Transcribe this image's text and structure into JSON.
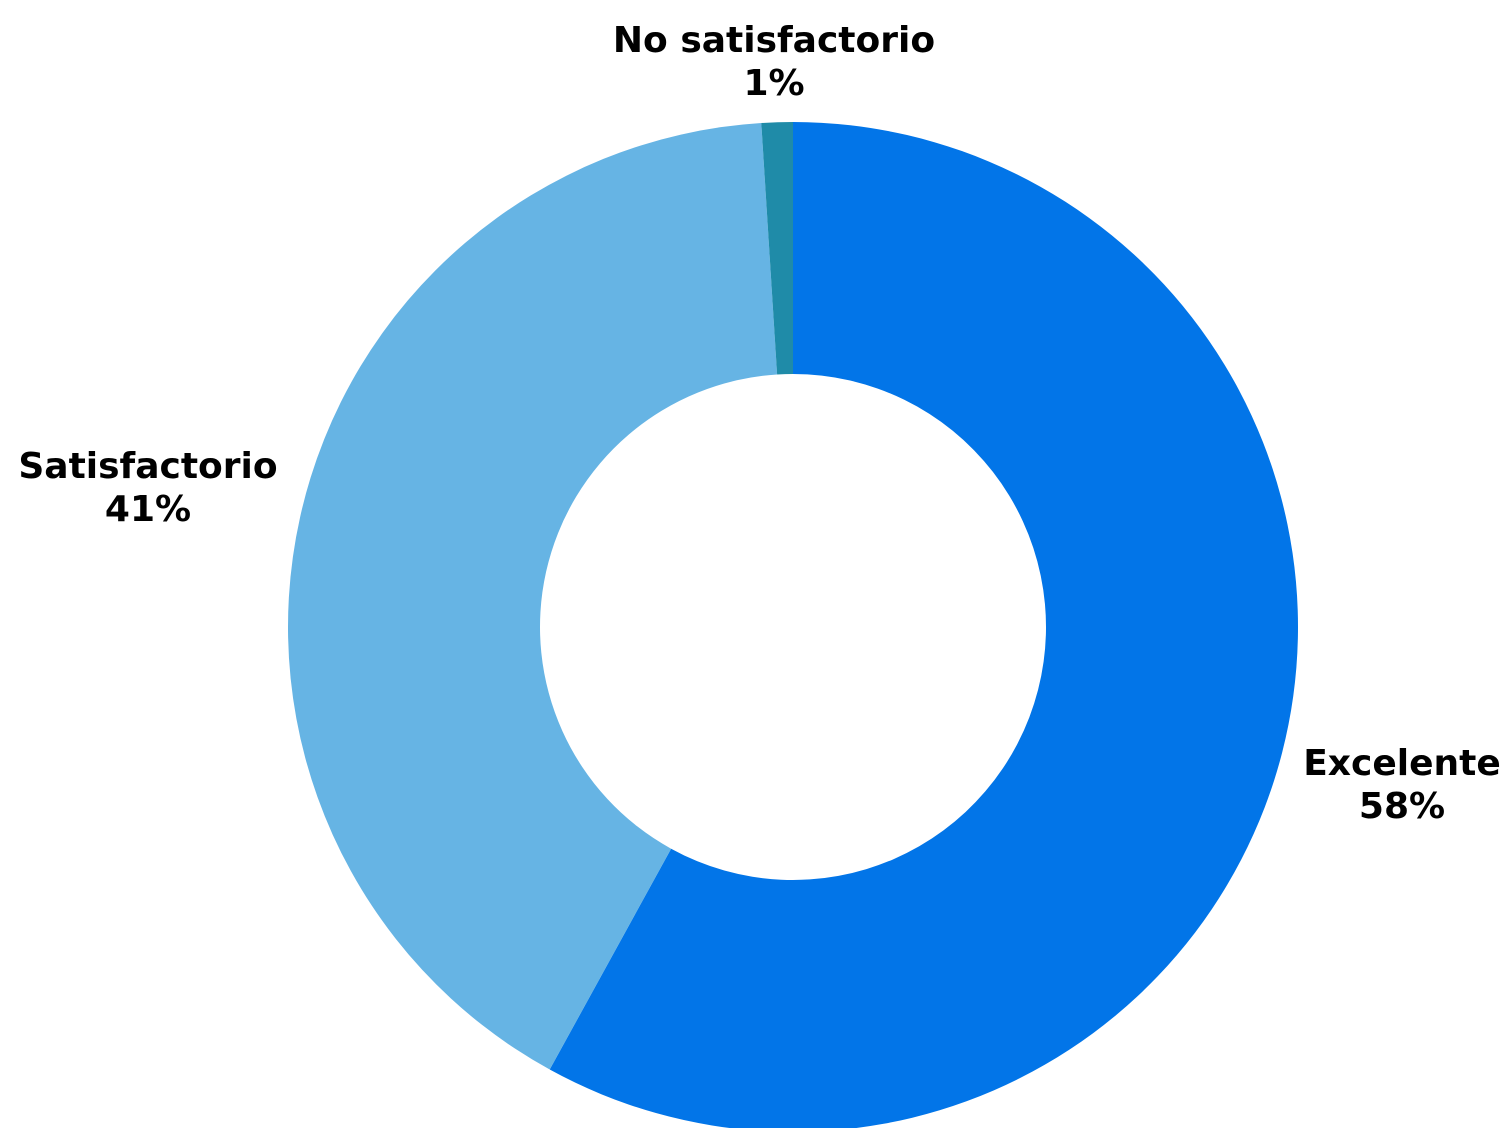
{
  "chart_data": {
    "type": "pie",
    "variant": "donut",
    "slices": [
      {
        "label": "Excelente",
        "value": 58,
        "value_label": "58%",
        "color": "#0275E8"
      },
      {
        "label": "Satisfactorio",
        "value": 41,
        "value_label": "41%",
        "color": "#66B4E4"
      },
      {
        "label": "No satisfactorio",
        "value": 1,
        "value_label": "1%",
        "color": "#1F8BA8"
      }
    ],
    "start_angle": "12 o'clock",
    "direction": "clockwise",
    "legend": "none"
  }
}
